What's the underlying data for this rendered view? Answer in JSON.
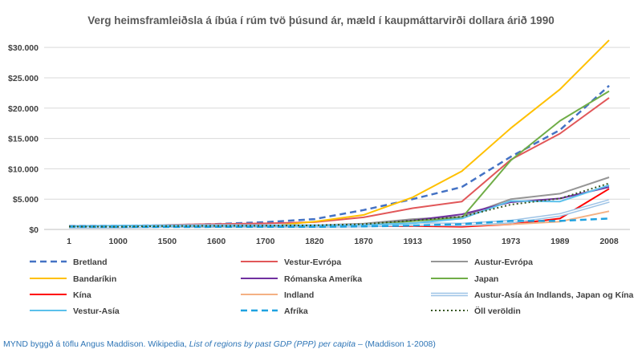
{
  "chart_data": {
    "type": "line",
    "title": "Verg heimsframleiðsla á íbúa í rúm tvö þúsund ár, mæld í kaupmáttarvirði dollara árið 1990",
    "categories": [
      "1",
      "1000",
      "1500",
      "1600",
      "1700",
      "1820",
      "1870",
      "1913",
      "1950",
      "1973",
      "1989",
      "2008"
    ],
    "y_ticks": [
      0,
      5000,
      10000,
      15000,
      20000,
      25000,
      30000
    ],
    "y_tick_labels": [
      "$0",
      "$5.000",
      "$10.000",
      "$15.000",
      "$20.000",
      "$25.000",
      "$30.000"
    ],
    "ylim": [
      0,
      32000
    ],
    "grid": true,
    "legend_position": "bottom",
    "series": [
      {
        "name": "Bretland",
        "color": "#4472c4",
        "style": "dashed",
        "values": [
          600,
          600,
          700,
          900,
          1200,
          1700,
          3200,
          5000,
          7000,
          12000,
          16400,
          23700
        ]
      },
      {
        "name": "Vestur-Evrópa",
        "color": "#e15759",
        "style": "solid",
        "values": [
          580,
          430,
          770,
          900,
          1000,
          1200,
          2000,
          3500,
          4600,
          11500,
          15800,
          21700
        ]
      },
      {
        "name": "Austur-Evrópa",
        "color": "#969696",
        "style": "solid",
        "values": [
          410,
          400,
          500,
          550,
          600,
          700,
          950,
          1700,
          2100,
          5000,
          5900,
          8600
        ]
      },
      {
        "name": "Bandaríkin",
        "color": "#ffc000",
        "style": "solid",
        "values": [
          400,
          400,
          400,
          400,
          500,
          1300,
          2400,
          5300,
          9600,
          16700,
          23100,
          31200
        ]
      },
      {
        "name": "Rómanska Ameríka",
        "color": "#7030a0",
        "style": "solid",
        "values": [
          400,
          400,
          420,
          440,
          530,
          690,
          680,
          1500,
          2500,
          4500,
          5100,
          7000
        ]
      },
      {
        "name": "Japan",
        "color": "#70ad47",
        "style": "solid",
        "values": [
          400,
          430,
          500,
          520,
          570,
          670,
          740,
          1380,
          1920,
          11400,
          17900,
          22800
        ]
      },
      {
        "name": "Kína",
        "color": "#ff0000",
        "style": "solid",
        "values": [
          450,
          450,
          600,
          600,
          600,
          600,
          530,
          550,
          450,
          840,
          1800,
          6700
        ]
      },
      {
        "name": "Indland",
        "color": "#f4b183",
        "style": "solid",
        "values": [
          450,
          450,
          550,
          550,
          550,
          530,
          530,
          670,
          620,
          850,
          1300,
          3000
        ]
      },
      {
        "name": "Austur-Asía án Indlands, Japan og Kína",
        "color": "#9dc3e6",
        "style": "double",
        "values": [
          450,
          450,
          560,
          580,
          570,
          570,
          640,
          880,
          800,
          1300,
          2400,
          4700
        ]
      },
      {
        "name": "Vestur-Asía",
        "color": "#5bc0eb",
        "style": "solid",
        "values": [
          520,
          620,
          590,
          590,
          590,
          610,
          740,
          1000,
          1800,
          4700,
          4600,
          7300
        ]
      },
      {
        "name": "Afríka",
        "color": "#1fa2e0",
        "style": "dashed",
        "values": [
          470,
          430,
          410,
          420,
          420,
          420,
          500,
          640,
          890,
          1400,
          1400,
          1800
        ]
      },
      {
        "name": "Öll veröldin",
        "color": "#375623",
        "style": "dotted",
        "values": [
          470,
          450,
          570,
          600,
          620,
          670,
          870,
          1500,
          2100,
          4100,
          5100,
          7600
        ]
      }
    ]
  },
  "caption": {
    "prefix": "MYND byggð á töflu Angus Maddison. Wikipedia, ",
    "italic": "List of regions by past GDP (PPP) per capita",
    "suffix": " – (Maddison 1-2008)"
  }
}
